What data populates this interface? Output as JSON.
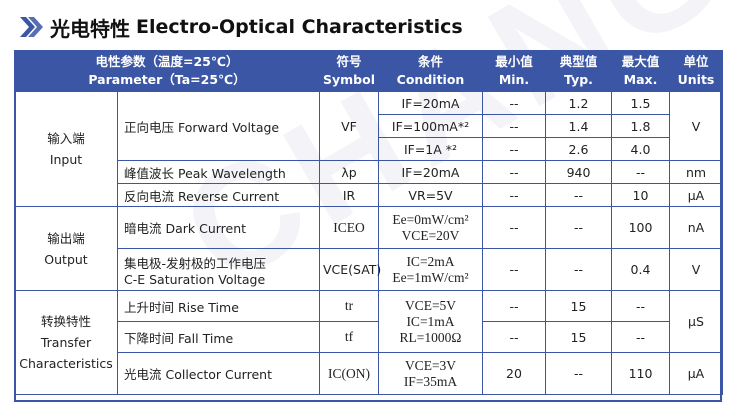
{
  "title": {
    "cn": "光电特性",
    "en": "Electro-Optical Characteristics"
  },
  "watermark": "CHANGE",
  "headers": {
    "param_cn": "电性参数（温度=25℃）",
    "param_en": "Parameter（Ta=25℃）",
    "symbol_cn": "符号",
    "symbol_en": "Symbol",
    "cond_cn": "条件",
    "cond_en": "Condition",
    "min_cn": "最小值",
    "min_en": "Min.",
    "typ_cn": "典型值",
    "typ_en": "Typ.",
    "max_cn": "最大值",
    "max_en": "Max.",
    "unit_cn": "单位",
    "unit_en": "Units"
  },
  "groups": {
    "input_cn": "输入端",
    "input_en": "Input",
    "output_cn": "输出端",
    "output_en": "Output",
    "transfer_cn": "转换特性",
    "transfer_en1": "Transfer",
    "transfer_en2": "Characteristics"
  },
  "rows": {
    "fv": {
      "name": "正向电压 Forward Voltage",
      "symbol": "VF",
      "unit": "V",
      "c1": "IF=20mA",
      "c2": "IF=100mA*²",
      "c3": "IF=1A *²",
      "min1": "--",
      "min2": "--",
      "min3": "--",
      "typ1": "1.2",
      "typ2": "1.4",
      "typ3": "2.6",
      "max1": "1.5",
      "max2": "1.8",
      "max3": "4.0"
    },
    "pw": {
      "name": "峰值波长 Peak Wavelength",
      "symbol": "λp",
      "cond": "IF=20mA",
      "min": "--",
      "typ": "940",
      "max": "--",
      "unit": "nm"
    },
    "rc": {
      "name": "反向电流 Reverse Current",
      "symbol": "IR",
      "cond": "VR=5V",
      "min": "--",
      "typ": "--",
      "max": "10",
      "unit": "μA"
    },
    "dc": {
      "name": "暗电流 Dark Current",
      "symbol": "ICEO",
      "cond1": "Ee=0mW/cm²",
      "cond2": "VCE=20V",
      "min": "--",
      "typ": "--",
      "max": "100",
      "unit": "nA"
    },
    "ce": {
      "name1": "集电极-发射极的工作电压",
      "name2": "C-E Saturation Voltage",
      "symbol": "VCE(SAT)",
      "cond1": "IC=2mA",
      "cond2": "Ee=1mW/cm²",
      "min": "--",
      "typ": "--",
      "max": "0.4",
      "unit": "V"
    },
    "rt": {
      "name": "上升时间 Rise Time",
      "symbol": "tr",
      "min": "--",
      "typ": "15",
      "max": "--"
    },
    "ft": {
      "name": "下降时间 Fall Time",
      "symbol": "tf",
      "min": "--",
      "typ": "15",
      "max": "--"
    },
    "tcond": {
      "c1": "VCE=5V",
      "c2": "IC=1mA",
      "c3": "RL=1000Ω",
      "unit": "μS"
    },
    "cc": {
      "name": "光电流 Collector Current",
      "symbol": "IC(ON)",
      "cond1": "VCE=3V",
      "cond2": "IF=35mA",
      "min": "20",
      "typ": "--",
      "max": "110",
      "unit": "μA"
    }
  }
}
